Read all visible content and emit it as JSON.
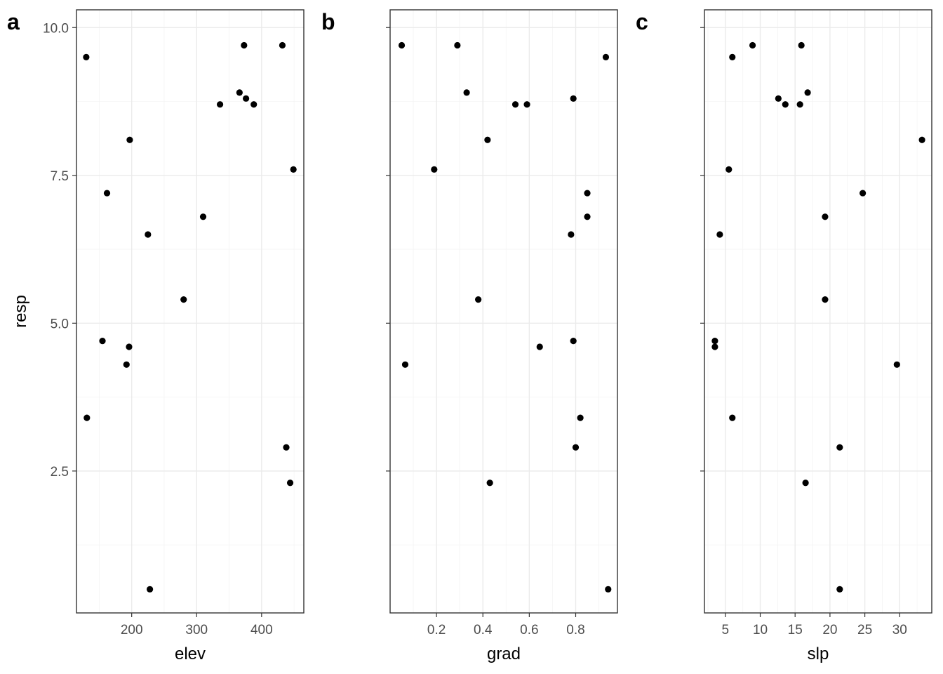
{
  "chart_data": [
    {
      "type": "scatter",
      "panel_label": "a",
      "xlabel": "elev",
      "ylabel": "resp",
      "xlim": [
        115,
        465
      ],
      "ylim": [
        0.1,
        10.3
      ],
      "x_major_ticks": [
        200,
        300,
        400
      ],
      "x_minor_ticks": [
        150,
        250,
        350,
        450
      ],
      "y_major_ticks": [
        2.5,
        5.0,
        7.5,
        10.0
      ],
      "y_minor_ticks": [
        1.25,
        3.75,
        6.25,
        8.75
      ],
      "x_tick_labels": [
        "200",
        "300",
        "400"
      ],
      "y_tick_labels": [
        "2.5",
        "5.0",
        "7.5",
        "10.0"
      ],
      "points": [
        {
          "x": 130,
          "y": 9.5
        },
        {
          "x": 131,
          "y": 3.4
        },
        {
          "x": 155,
          "y": 4.7
        },
        {
          "x": 162,
          "y": 7.2
        },
        {
          "x": 192,
          "y": 4.3
        },
        {
          "x": 196,
          "y": 4.6
        },
        {
          "x": 197,
          "y": 8.1
        },
        {
          "x": 225,
          "y": 6.5
        },
        {
          "x": 228,
          "y": 0.5
        },
        {
          "x": 280,
          "y": 5.4
        },
        {
          "x": 310,
          "y": 6.8
        },
        {
          "x": 336,
          "y": 8.7
        },
        {
          "x": 366,
          "y": 8.9
        },
        {
          "x": 373,
          "y": 9.7
        },
        {
          "x": 376,
          "y": 8.8
        },
        {
          "x": 388,
          "y": 8.7
        },
        {
          "x": 432,
          "y": 9.7
        },
        {
          "x": 438,
          "y": 2.9
        },
        {
          "x": 444,
          "y": 2.3
        },
        {
          "x": 449,
          "y": 7.6
        }
      ]
    },
    {
      "type": "scatter",
      "panel_label": "b",
      "xlabel": "grad",
      "ylabel": "",
      "xlim": [
        0.0,
        0.98
      ],
      "ylim": [
        0.1,
        10.3
      ],
      "x_major_ticks": [
        0.2,
        0.4,
        0.6,
        0.8
      ],
      "x_minor_ticks": [
        0.1,
        0.3,
        0.5,
        0.7,
        0.9
      ],
      "y_major_ticks": [
        2.5,
        5.0,
        7.5,
        10.0
      ],
      "y_minor_ticks": [
        1.25,
        3.75,
        6.25,
        8.75
      ],
      "x_tick_labels": [
        "0.2",
        "0.4",
        "0.6",
        "0.8"
      ],
      "y_tick_labels": [],
      "points": [
        {
          "x": 0.05,
          "y": 9.7
        },
        {
          "x": 0.065,
          "y": 4.3
        },
        {
          "x": 0.19,
          "y": 7.6
        },
        {
          "x": 0.29,
          "y": 9.7
        },
        {
          "x": 0.33,
          "y": 8.9
        },
        {
          "x": 0.38,
          "y": 5.4
        },
        {
          "x": 0.42,
          "y": 8.1
        },
        {
          "x": 0.43,
          "y": 2.3
        },
        {
          "x": 0.54,
          "y": 8.7
        },
        {
          "x": 0.59,
          "y": 8.7
        },
        {
          "x": 0.645,
          "y": 4.6
        },
        {
          "x": 0.78,
          "y": 6.5
        },
        {
          "x": 0.79,
          "y": 8.8
        },
        {
          "x": 0.79,
          "y": 4.7
        },
        {
          "x": 0.8,
          "y": 2.9
        },
        {
          "x": 0.82,
          "y": 3.4
        },
        {
          "x": 0.85,
          "y": 7.2
        },
        {
          "x": 0.85,
          "y": 6.8
        },
        {
          "x": 0.93,
          "y": 9.5
        },
        {
          "x": 0.94,
          "y": 0.5
        }
      ]
    },
    {
      "type": "scatter",
      "panel_label": "c",
      "xlabel": "slp",
      "ylabel": "",
      "xlim": [
        2.0,
        34.6
      ],
      "ylim": [
        0.1,
        10.3
      ],
      "x_major_ticks": [
        5,
        10,
        15,
        20,
        25,
        30
      ],
      "x_minor_ticks": [
        2.5,
        7.5,
        12.5,
        17.5,
        22.5,
        27.5,
        32.5
      ],
      "y_major_ticks": [
        2.5,
        5.0,
        7.5,
        10.0
      ],
      "y_minor_ticks": [
        1.25,
        3.75,
        6.25,
        8.75
      ],
      "x_tick_labels": [
        "5",
        "10",
        "15",
        "20",
        "25",
        "30"
      ],
      "y_tick_labels": [],
      "points": [
        {
          "x": 3.5,
          "y": 4.7
        },
        {
          "x": 3.5,
          "y": 4.6
        },
        {
          "x": 4.2,
          "y": 6.5
        },
        {
          "x": 5.5,
          "y": 7.6
        },
        {
          "x": 6.0,
          "y": 9.5
        },
        {
          "x": 6.0,
          "y": 3.4
        },
        {
          "x": 8.9,
          "y": 9.7
        },
        {
          "x": 12.6,
          "y": 8.8
        },
        {
          "x": 13.6,
          "y": 8.7
        },
        {
          "x": 15.7,
          "y": 8.7
        },
        {
          "x": 15.9,
          "y": 9.7
        },
        {
          "x": 16.5,
          "y": 2.3
        },
        {
          "x": 16.8,
          "y": 8.9
        },
        {
          "x": 19.3,
          "y": 6.8
        },
        {
          "x": 19.3,
          "y": 5.4
        },
        {
          "x": 21.4,
          "y": 2.9
        },
        {
          "x": 21.4,
          "y": 0.5
        },
        {
          "x": 24.7,
          "y": 7.2
        },
        {
          "x": 29.6,
          "y": 4.3
        },
        {
          "x": 33.2,
          "y": 8.1
        }
      ]
    }
  ]
}
